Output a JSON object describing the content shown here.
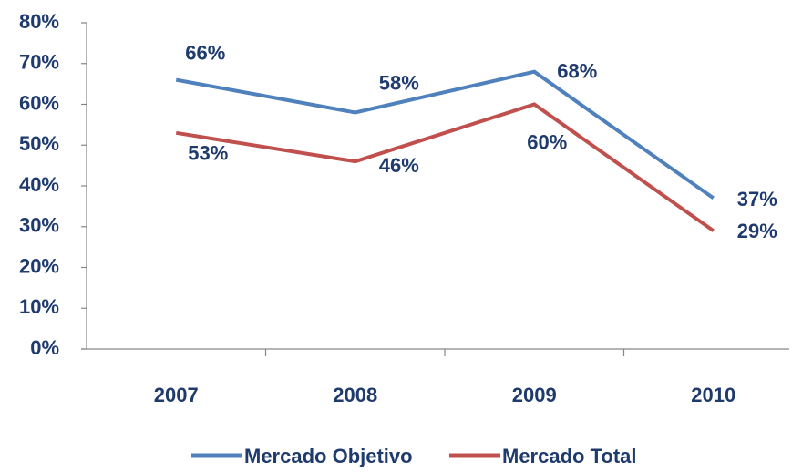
{
  "chart_data": {
    "type": "line",
    "categories": [
      "2007",
      "2008",
      "2009",
      "2010"
    ],
    "series": [
      {
        "name": "Mercado Objetivo",
        "color": "#4f81bd",
        "values": [
          66,
          58,
          68,
          37
        ],
        "value_labels": [
          "66%",
          "58%",
          "68%",
          "37%"
        ]
      },
      {
        "name": "Mercado Total",
        "color": "#c0504d",
        "values": [
          53,
          46,
          60,
          29
        ],
        "value_labels": [
          "53%",
          "46%",
          "60%",
          "29%"
        ]
      }
    ],
    "ylim": [
      0,
      80
    ],
    "yticks": [
      {
        "value": 0,
        "label": "0%"
      },
      {
        "value": 10,
        "label": "10%"
      },
      {
        "value": 20,
        "label": "20%"
      },
      {
        "value": 30,
        "label": "30%"
      },
      {
        "value": 40,
        "label": "40%"
      },
      {
        "value": 50,
        "label": "50%"
      },
      {
        "value": 60,
        "label": "60%"
      },
      {
        "value": 70,
        "label": "70%"
      },
      {
        "value": 80,
        "label": "80%"
      }
    ],
    "grid": false,
    "legend": "bottom"
  }
}
